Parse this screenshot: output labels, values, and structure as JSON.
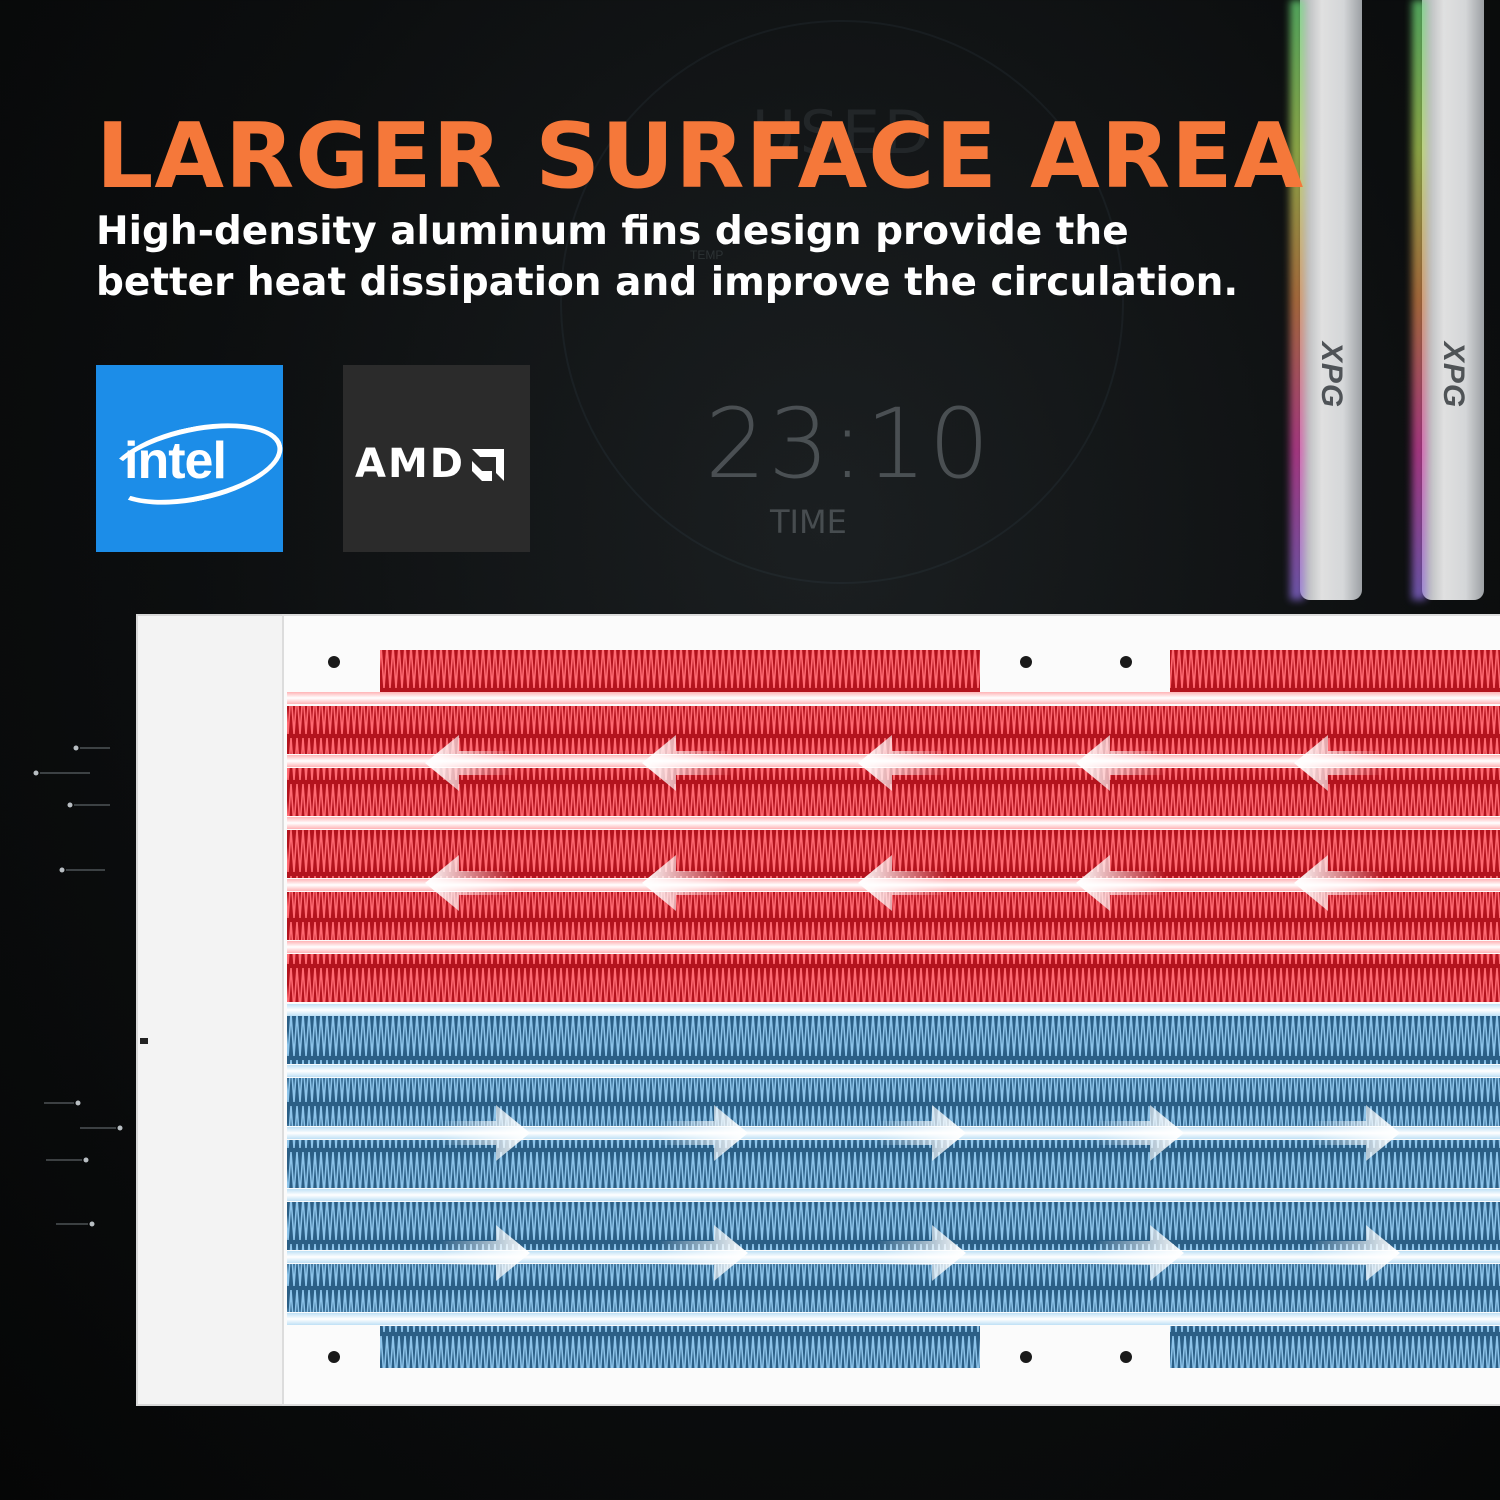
{
  "background": {
    "screen_word": "USED",
    "temp_label": "TEMP",
    "time_value": "23:10",
    "time_label": "TIME",
    "ram_brand": "XPG"
  },
  "heading": {
    "title": "LARGER SURFACE AREA",
    "subtitle": "High-density aluminum fins design provide the better heat dissipation and improve the circulation."
  },
  "brands": {
    "intel": "intel",
    "amd": "AMD"
  },
  "colors": {
    "title": "#f5783a",
    "hot_section": "#d9232c",
    "cold_section": "#2f6f9e",
    "frame": "#ffffff",
    "intel_tile": "#1c8de8",
    "amd_tile": "#2b2b2b"
  },
  "flow": {
    "hot_direction": "left",
    "cold_direction": "right"
  }
}
